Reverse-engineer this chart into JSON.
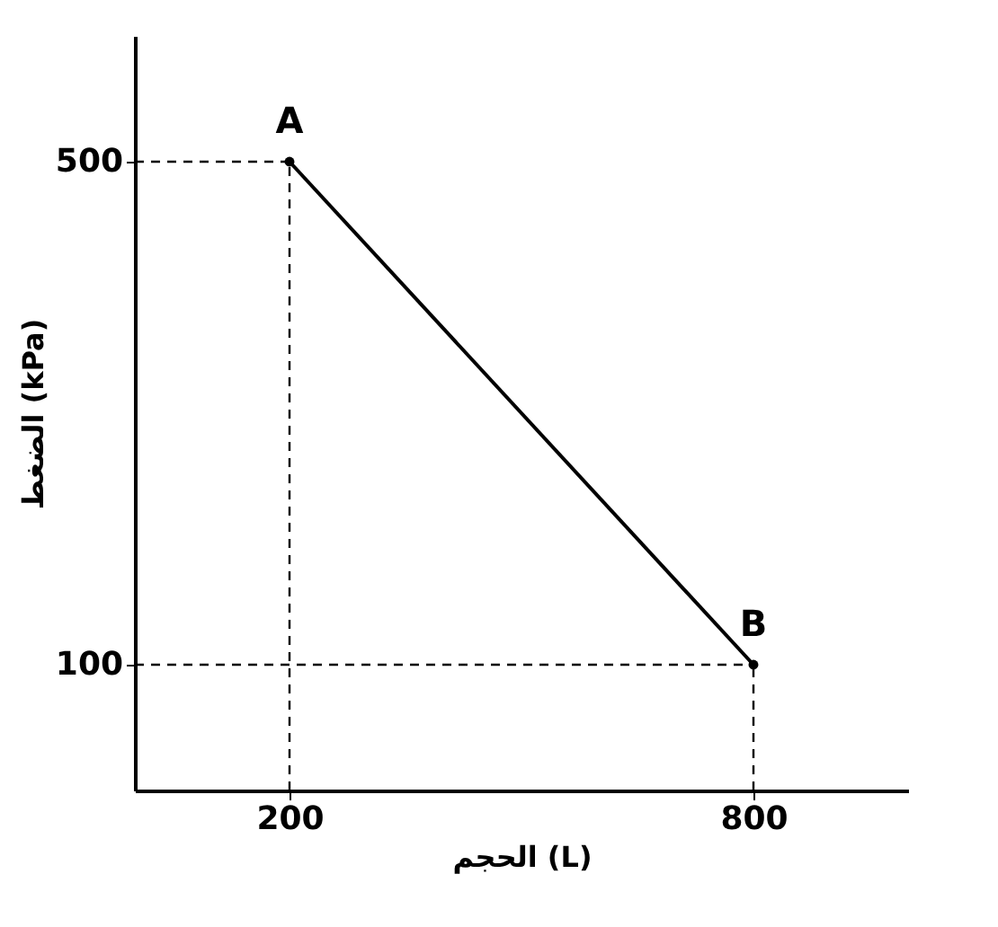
{
  "chart_data": {
    "type": "line",
    "xlabel": "الحجم (L)",
    "ylabel": "الضغط (kPa)",
    "x": [
      200,
      800
    ],
    "series": [
      {
        "color": "#000000",
        "values": [
          500,
          100
        ]
      }
    ],
    "xlim": [
      0,
      1000
    ],
    "ylim": [
      0,
      600
    ],
    "xticks": [
      200,
      800
    ],
    "yticks": [
      100,
      500
    ],
    "marker": "circle",
    "line_style": "solid",
    "grid": false,
    "legend": false,
    "ref_lines": [
      {
        "axis": "x",
        "value": 200,
        "line_style": "dashed"
      },
      {
        "axis": "x",
        "value": 800,
        "line_style": "dashed"
      },
      {
        "axis": "y",
        "value": 500,
        "line_style": "dashed"
      },
      {
        "axis": "y",
        "value": 100,
        "line_style": "dashed"
      }
    ],
    "annotations": [
      {
        "text": "A",
        "x": 200,
        "y": 500
      },
      {
        "text": "B",
        "x": 800,
        "y": 100
      }
    ]
  }
}
